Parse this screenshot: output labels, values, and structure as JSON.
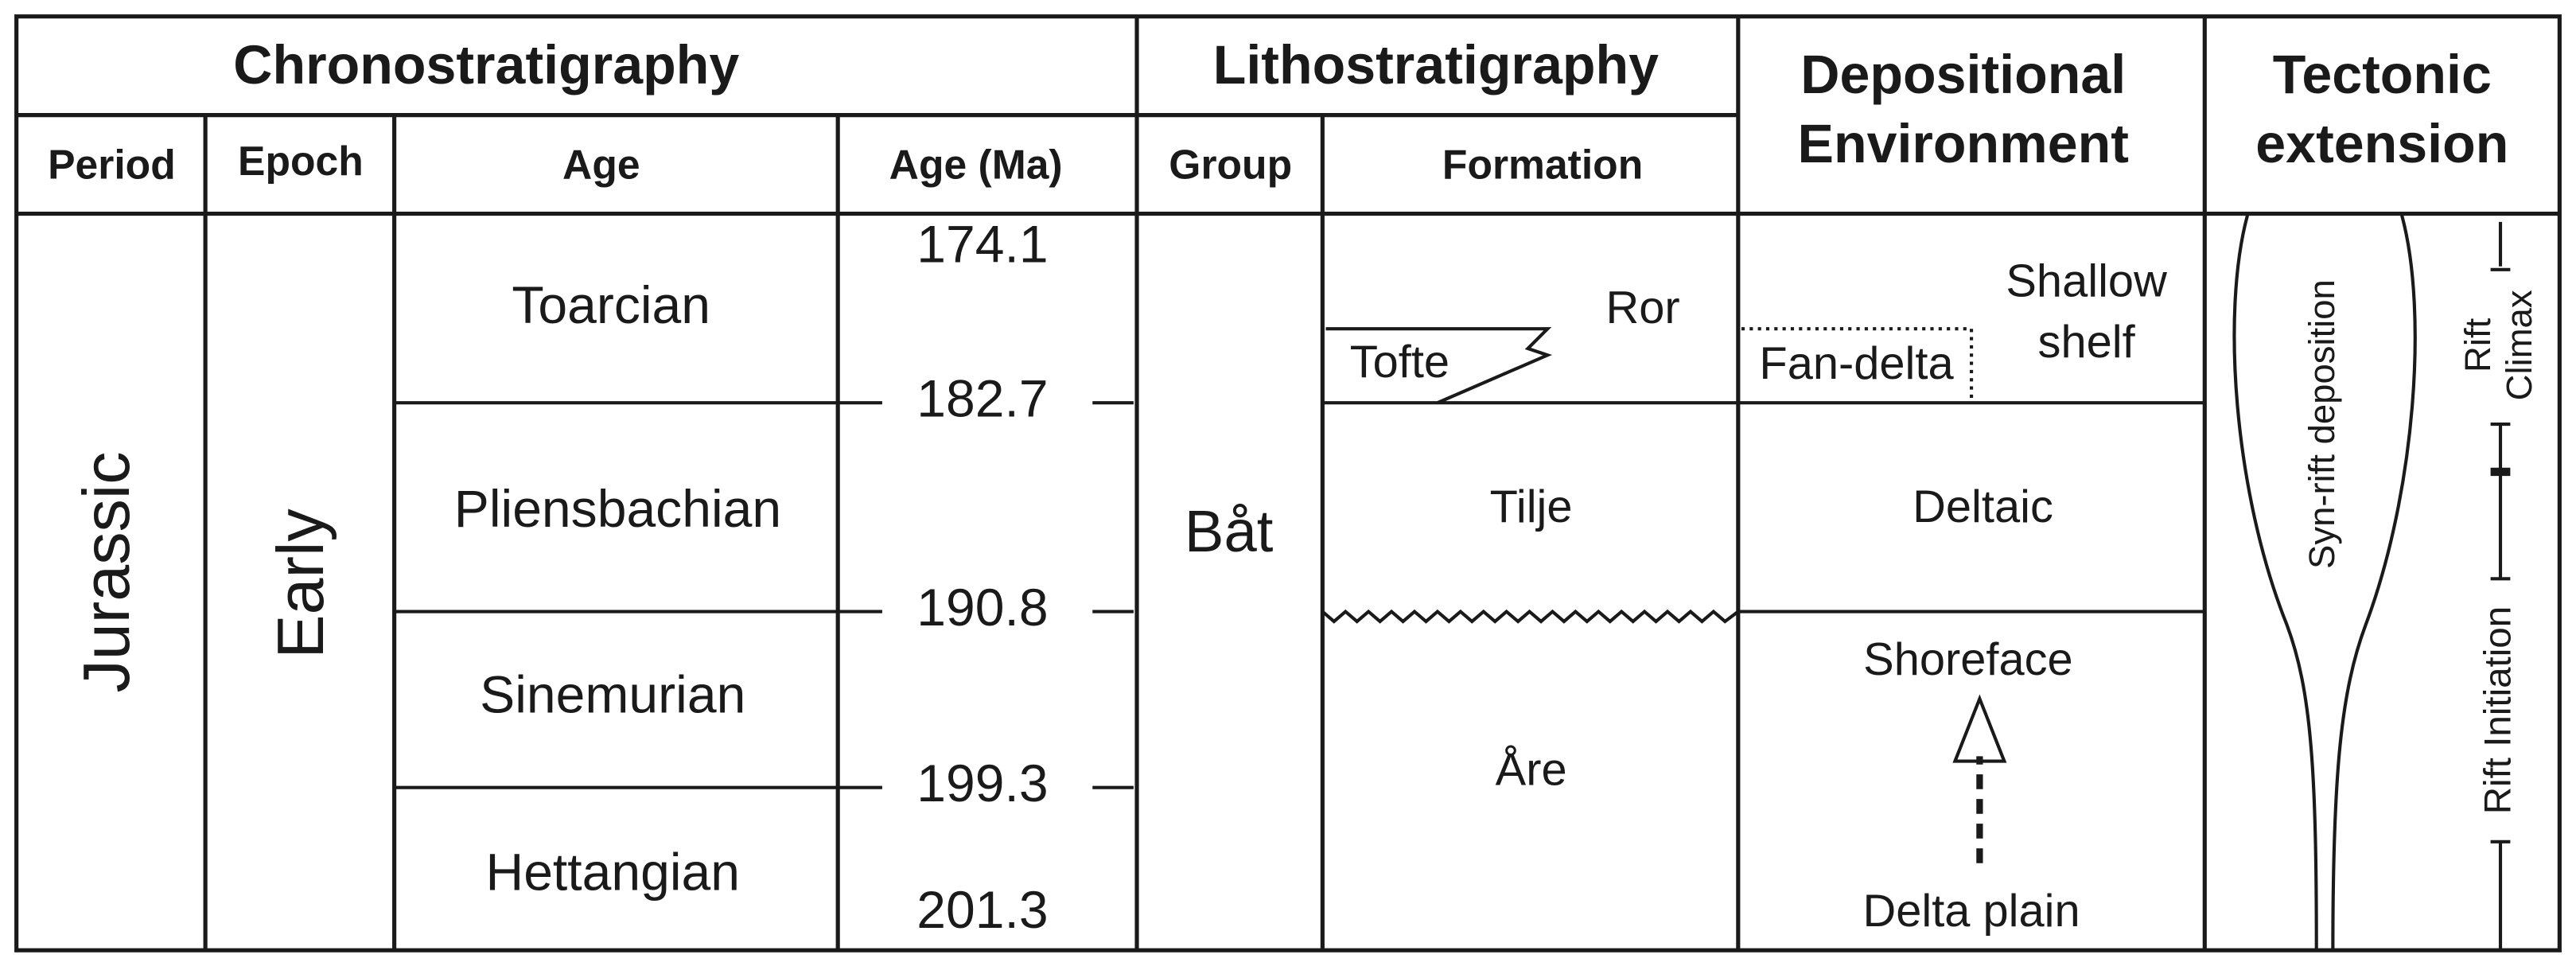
{
  "header": {
    "chronostratigraphy": "Chronostratigraphy",
    "lithostratigraphy": "Lithostratigraphy",
    "depositional_environment": [
      "Depositional",
      "Environment"
    ],
    "tectonic_extension": [
      "Tectonic",
      "extension"
    ]
  },
  "subheader": {
    "period": "Period",
    "epoch": "Epoch",
    "age": "Age",
    "age_ma": "Age (Ma)",
    "group": "Group",
    "formation": "Formation"
  },
  "period": "Jurassic",
  "epoch": "Early",
  "ages": [
    "Toarcian",
    "Pliensbachian",
    "Sinemurian",
    "Hettangian"
  ],
  "age_ma": [
    "174.1",
    "182.7",
    "190.8",
    "199.3",
    "201.3"
  ],
  "group": "Båt",
  "formations": {
    "ror": "Ror",
    "tofte": "Tofte",
    "tilje": "Tilje",
    "are": "Åre"
  },
  "environments": {
    "shallow_shelf": [
      "Shallow",
      "shelf"
    ],
    "fan_delta": "Fan-delta",
    "deltaic": "Deltaic",
    "shoreface": "Shoreface",
    "delta_plain": "Delta plain"
  },
  "tectonic": {
    "syn_rift": "Syn-rift deposition",
    "rift_climax": [
      "Rift",
      "Climax"
    ],
    "rift_initiation": "Rift Initiation"
  }
}
